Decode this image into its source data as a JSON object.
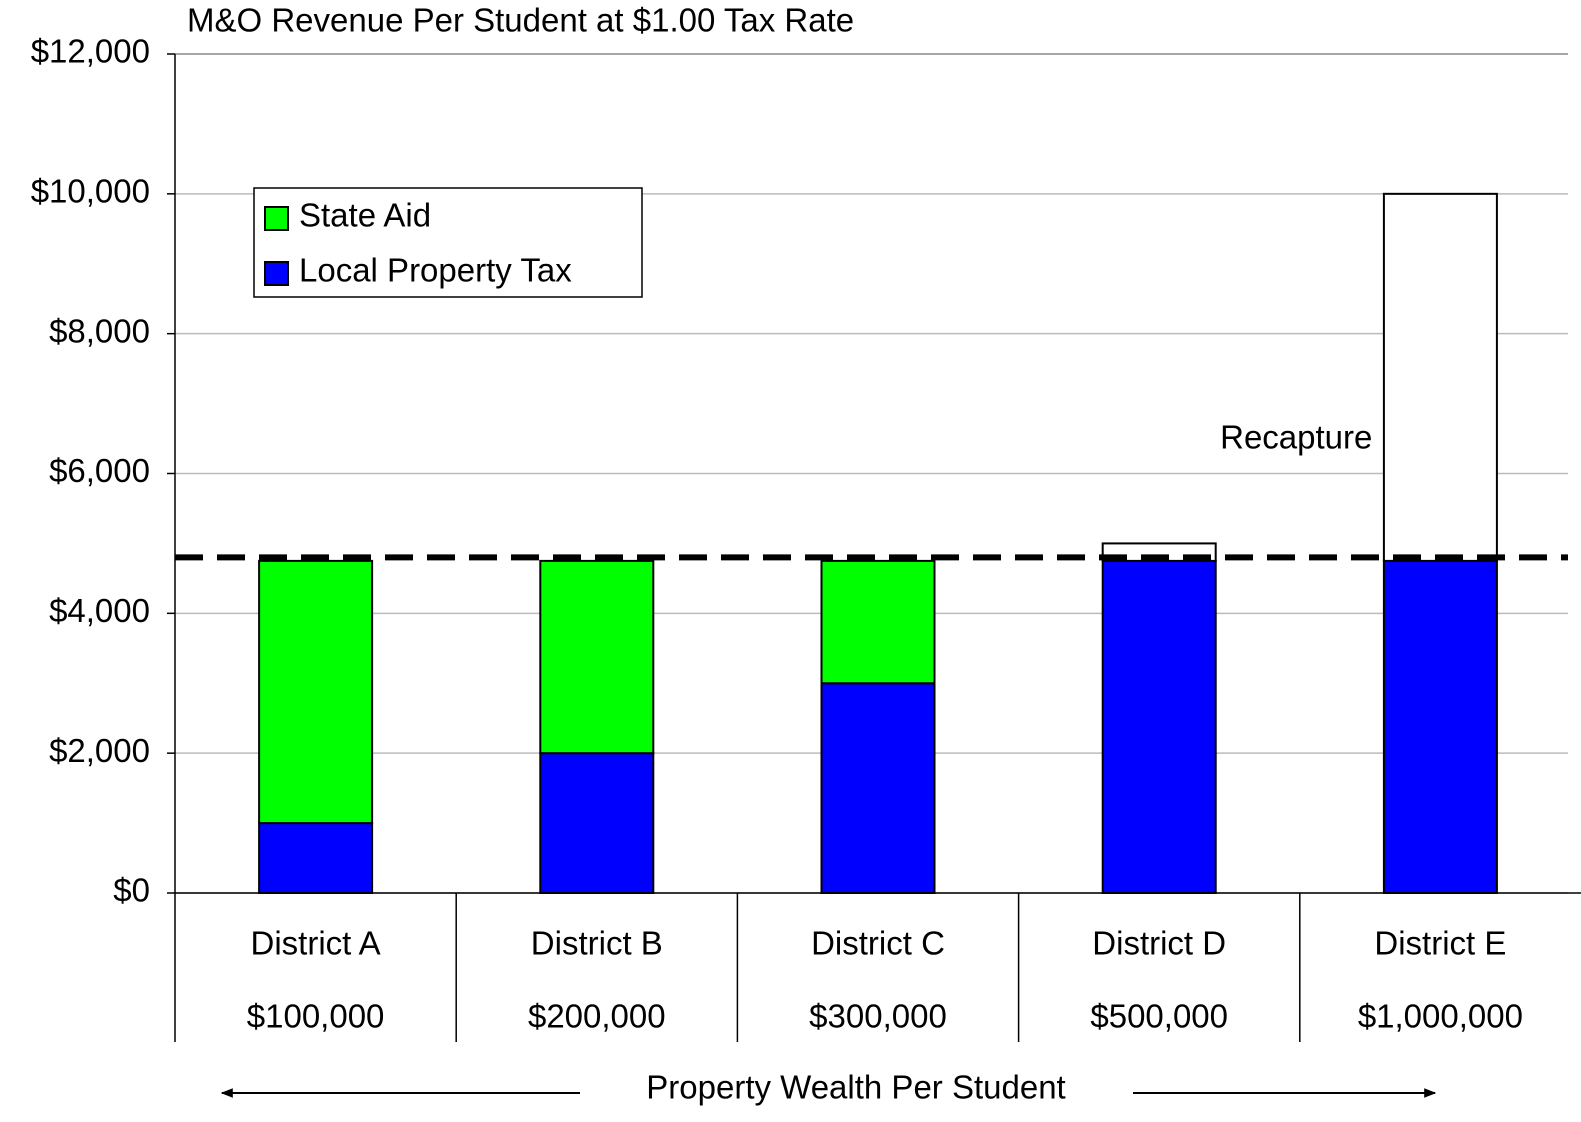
{
  "chart_data": {
    "type": "stacked_bar",
    "title": "M&O Revenue Per Student at $1.00 Tax Rate",
    "x_label": "Property Wealth Per Student",
    "categories": [
      "District A",
      "District B",
      "District C",
      "District D",
      "District E"
    ],
    "x_sublabels": [
      "$100,000",
      "$200,000",
      "$300,000",
      "$500,000",
      "$1,000,000"
    ],
    "series": [
      {
        "name": "Local Property Tax",
        "color": "#0000ff",
        "values": [
          1000,
          2000,
          3000,
          4750,
          4750
        ],
        "legend": true
      },
      {
        "name": "State Aid",
        "color": "#00ff00",
        "values": [
          3750,
          2750,
          1750,
          null,
          null
        ],
        "legend": true
      },
      {
        "name": "Recapture",
        "color": "#ffffff",
        "values": [
          null,
          null,
          null,
          250,
          5250
        ],
        "legend": false
      }
    ],
    "reference_line": 4800,
    "ylim": [
      0,
      12000
    ],
    "yticks": [
      {
        "value": 0,
        "label": "$0"
      },
      {
        "value": 2000,
        "label": "$2,000"
      },
      {
        "value": 4000,
        "label": "$4,000"
      },
      {
        "value": 6000,
        "label": "$6,000"
      },
      {
        "value": 8000,
        "label": "$8,000"
      },
      {
        "value": 10000,
        "label": "$10,000"
      },
      {
        "value": 12000,
        "label": "$12,000"
      }
    ],
    "grid": true,
    "legend_position": "upper left"
  }
}
